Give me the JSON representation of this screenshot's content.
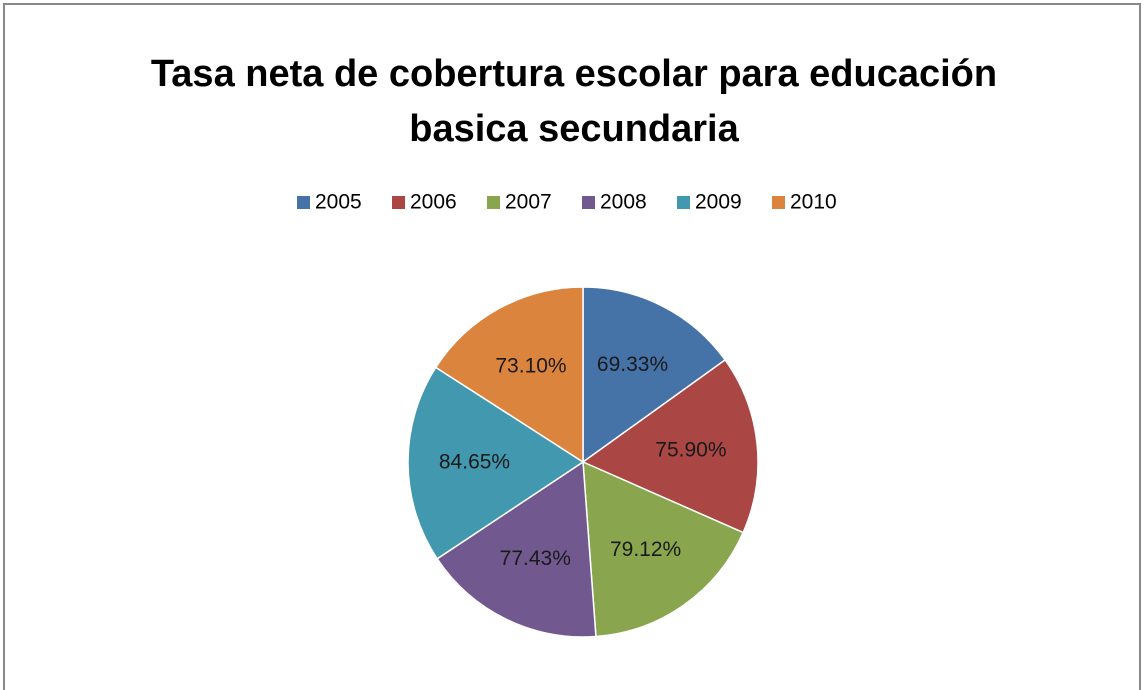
{
  "chart_data": {
    "type": "pie",
    "title": [
      "Tasa neta de cobertura escolar para educación",
      "basica secundaria"
    ],
    "categories": [
      "2005",
      "2006",
      "2007",
      "2008",
      "2009",
      "2010"
    ],
    "values": [
      69.33,
      75.9,
      79.12,
      77.43,
      84.65,
      73.1
    ],
    "value_labels": [
      "69.33%",
      "75.90%",
      "79.12%",
      "77.43%",
      "84.65%",
      "73.10%"
    ],
    "colors": [
      "#4572A7",
      "#AA4643",
      "#89A54E",
      "#71588F",
      "#4198AF",
      "#DB843D"
    ],
    "legend": "top"
  }
}
